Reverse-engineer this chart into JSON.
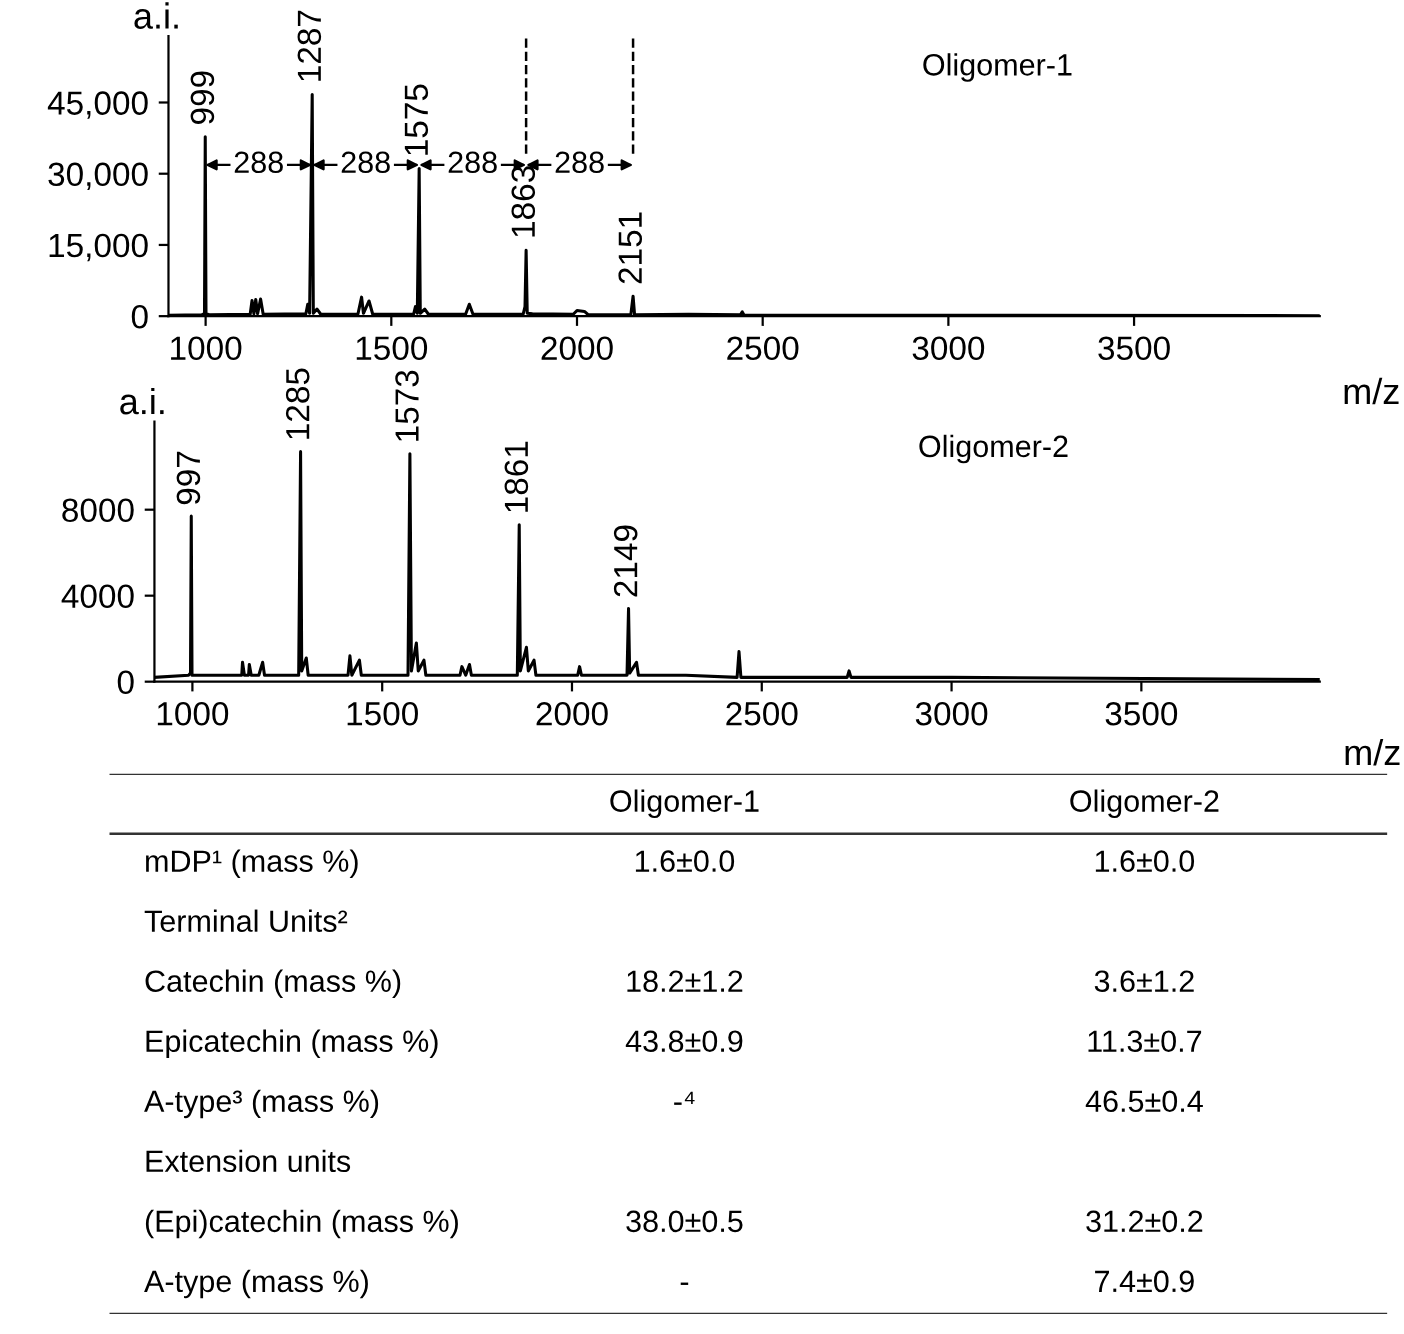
{
  "chart_data": [
    {
      "type": "line",
      "title": "Oligomer-1",
      "xlabel": "m/z",
      "ylabel": "a.i.",
      "xlim": [
        900,
        4000
      ],
      "ylim": [
        0,
        59000
      ],
      "xticks": [
        1000,
        1500,
        2000,
        2500,
        3000,
        3500
      ],
      "yticks": [
        0,
        {
          "value": 15000,
          "label": "15,000"
        },
        {
          "value": 30000,
          "label": "30,000"
        },
        {
          "value": 45000,
          "label": "45,000"
        }
      ],
      "grid": false,
      "marker": "none",
      "line_style": "solid",
      "series": [
        {
          "color": "#000000",
          "x": [
            900,
            990,
            997,
            999,
            1001,
            1010,
            1120,
            1125,
            1130,
            1135,
            1140,
            1148,
            1155,
            1270,
            1275,
            1280,
            1287,
            1290,
            1300,
            1310,
            1410,
            1420,
            1425,
            1440,
            1450,
            1560,
            1565,
            1570,
            1575,
            1578,
            1590,
            1600,
            1700,
            1710,
            1720,
            1855,
            1860,
            1863,
            1866,
            1880,
            1990,
            2000,
            2020,
            2030,
            2145,
            2151,
            2155,
            2300,
            2440,
            2445,
            2450,
            3000,
            4000
          ],
          "values": [
            200,
            300,
            500,
            37800,
            500,
            300,
            400,
            3300,
            500,
            3500,
            500,
            3600,
            400,
            500,
            2500,
            600,
            46700,
            600,
            1500,
            400,
            400,
            4000,
            600,
            3200,
            400,
            400,
            2000,
            600,
            31100,
            600,
            1500,
            400,
            400,
            2500,
            400,
            400,
            2000,
            13900,
            600,
            500,
            400,
            1200,
            1000,
            300,
            300,
            4200,
            300,
            400,
            300,
            900,
            200,
            200,
            100
          ]
        }
      ],
      "annotations": [
        {
          "text": "999",
          "x": 999,
          "y": 37800
        },
        {
          "text": "1287",
          "x": 1287,
          "y": 46700
        },
        {
          "text": "1575",
          "x": 1575,
          "y": 31100
        },
        {
          "text": "1863",
          "x": 1863,
          "y": 13900
        },
        {
          "text": "2151",
          "x": 2151,
          "y": 4200
        },
        "288",
        "288",
        "288",
        "288"
      ],
      "ref_lines": [
        {
          "axis": "x",
          "value": 1863,
          "line_style": "dashed",
          "color": "#000000"
        },
        {
          "axis": "x",
          "value": 2151,
          "line_style": "dashed",
          "color": "#000000"
        }
      ]
    },
    {
      "type": "line",
      "title": "Oligomer-2",
      "xlabel": "m/z",
      "ylabel": "a.i.",
      "xlim": [
        900,
        3970
      ],
      "ylim": [
        0,
        12100
      ],
      "xticks": [
        1000,
        1500,
        2000,
        2500,
        3000,
        3500
      ],
      "yticks": [
        0,
        4000,
        8000
      ],
      "grid": false,
      "marker": "none",
      "line_style": "solid",
      "series": [
        {
          "color": "#000000",
          "x": [
            900,
            990,
            995,
            997,
            999,
            1130,
            1132,
            1137,
            1148,
            1150,
            1155,
            1175,
            1180,
            1185,
            1190,
            1280,
            1285,
            1288,
            1300,
            1305,
            1410,
            1415,
            1420,
            1440,
            1445,
            1568,
            1573,
            1577,
            1590,
            1595,
            1610,
            1615,
            1705,
            1710,
            1720,
            1730,
            1735,
            1856,
            1861,
            1864,
            1880,
            1885,
            1900,
            1905,
            2015,
            2020,
            2025,
            2145,
            2149,
            2152,
            2170,
            2175,
            2300,
            2435,
            2440,
            2445,
            2725,
            2730,
            2735,
            3000,
            3970
          ],
          "values": [
            200,
            300,
            400,
            7700,
            300,
            300,
            900,
            300,
            300,
            800,
            300,
            300,
            600,
            900,
            300,
            300,
            10700,
            500,
            1100,
            300,
            300,
            1200,
            300,
            1000,
            300,
            300,
            10600,
            500,
            1800,
            500,
            1000,
            300,
            300,
            700,
            300,
            800,
            300,
            300,
            7300,
            500,
            1600,
            500,
            1000,
            300,
            300,
            700,
            300,
            300,
            3400,
            400,
            900,
            300,
            300,
            200,
            1400,
            200,
            200,
            500,
            200,
            200,
            100
          ]
        }
      ],
      "annotations": [
        {
          "text": "997",
          "x": 997,
          "y": 7700
        },
        {
          "text": "1285",
          "x": 1285,
          "y": 10700
        },
        {
          "text": "1573",
          "x": 1573,
          "y": 10600
        },
        {
          "text": "1861",
          "x": 1861,
          "y": 7300
        },
        {
          "text": "2149",
          "x": 2149,
          "y": 3400
        }
      ]
    },
    {
      "type": "other",
      "categories": [
        "Oligomer-1",
        "Oligomer-2"
      ],
      "y_categories": [
        "mDP¹ (mass %)",
        "Terminal Units²",
        "Catechin (mass %)",
        "Epicatechin (mass %)",
        "A-type³ (mass %)",
        "Extension units",
        "(Epi)catechin (mass %)",
        "A-type (mass %)"
      ],
      "cell_labels": [
        [
          "1.6±0.0",
          "1.6±0.0"
        ],
        [
          null,
          null
        ],
        [
          "18.2±1.2",
          "3.6±1.2"
        ],
        [
          "43.8±0.9",
          "11.3±0.7"
        ],
        [
          "-⁴",
          "46.5±0.4"
        ],
        [
          null,
          null
        ],
        [
          "38.0±0.5",
          "31.2±0.2"
        ],
        [
          "-",
          "7.4±0.9"
        ]
      ]
    }
  ]
}
